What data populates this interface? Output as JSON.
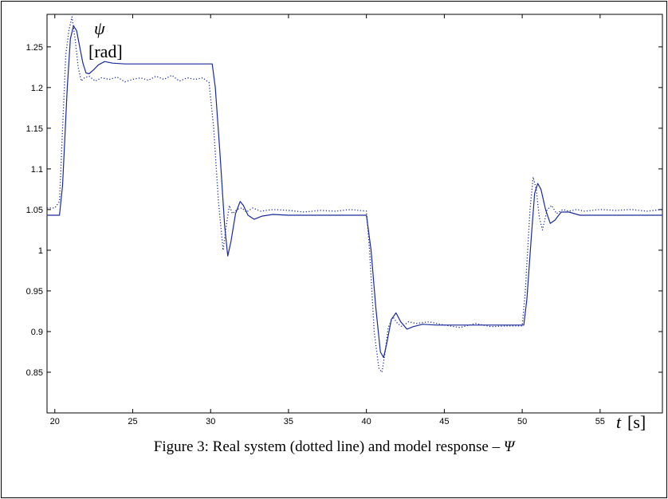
{
  "chart_data": {
    "type": "line",
    "title": "",
    "xlabel": "t [s]",
    "xlabel_var": "t",
    "xlabel_unit": "[s]",
    "ylabel_var": "ψ",
    "ylabel_unit": "[rad]",
    "xlim": [
      19.5,
      59
    ],
    "ylim": [
      0.8,
      1.29
    ],
    "grid": false,
    "legend": "none",
    "x_ticks": [
      20,
      25,
      30,
      35,
      40,
      45,
      50,
      55
    ],
    "x_tick_labels": [
      "20",
      "25",
      "30",
      "35",
      "40",
      "45",
      "50",
      "55"
    ],
    "y_ticks": [
      0.85,
      0.9,
      0.95,
      1.0,
      1.05,
      1.1,
      1.15,
      1.2,
      1.25
    ],
    "y_tick_labels": [
      "0.85",
      "0.9",
      "0.95",
      "1",
      "1.05",
      "1.1",
      "1.15",
      "1.2",
      "1.25"
    ],
    "series": [
      {
        "style": "solid",
        "color": "#1a2a9a",
        "x": [
          19.5,
          20.3,
          20.5,
          20.8,
          21.0,
          21.2,
          21.4,
          21.6,
          21.8,
          22.0,
          22.2,
          22.5,
          22.8,
          23.2,
          23.7,
          24.5,
          26,
          28,
          30.1,
          30.3,
          30.6,
          30.9,
          31.1,
          31.3,
          31.6,
          31.9,
          32.1,
          32.4,
          32.8,
          33.3,
          34.0,
          35,
          37,
          40.0,
          40.3,
          40.6,
          40.9,
          41.1,
          41.3,
          41.6,
          41.9,
          42.2,
          42.6,
          43.0,
          43.6,
          44.5,
          46,
          48,
          50.1,
          50.3,
          50.6,
          50.8,
          51.0,
          51.2,
          51.5,
          51.8,
          52.1,
          52.5,
          53.0,
          53.7,
          55,
          57,
          59
        ],
        "y": [
          1.043,
          1.043,
          1.08,
          1.2,
          1.26,
          1.276,
          1.27,
          1.25,
          1.23,
          1.218,
          1.217,
          1.222,
          1.228,
          1.232,
          1.23,
          1.229,
          1.229,
          1.229,
          1.229,
          1.2,
          1.12,
          1.03,
          0.993,
          1.01,
          1.045,
          1.06,
          1.055,
          1.043,
          1.038,
          1.042,
          1.044,
          1.043,
          1.043,
          1.043,
          1.0,
          0.93,
          0.875,
          0.868,
          0.885,
          0.915,
          0.923,
          0.912,
          0.903,
          0.906,
          0.909,
          0.908,
          0.908,
          0.908,
          0.908,
          0.94,
          1.02,
          1.07,
          1.082,
          1.075,
          1.05,
          1.033,
          1.037,
          1.047,
          1.047,
          1.043,
          1.043,
          1.043,
          1.043
        ]
      },
      {
        "style": "dotted",
        "color": "#1a2a9a",
        "x": [
          19.5,
          20.0,
          20.3,
          20.5,
          20.7,
          20.9,
          21.1,
          21.3,
          21.5,
          21.7,
          21.9,
          22.2,
          22.6,
          23.0,
          23.5,
          24.0,
          24.5,
          25.0,
          25.5,
          26.0,
          26.5,
          27.0,
          27.5,
          28.0,
          28.5,
          29.0,
          29.5,
          29.9,
          30.2,
          30.5,
          30.8,
          31.0,
          31.2,
          31.4,
          31.7,
          32.0,
          32.3,
          32.7,
          33.2,
          34.0,
          35,
          36,
          37,
          38,
          39,
          40.0,
          40.2,
          40.5,
          40.8,
          41.0,
          41.2,
          41.4,
          41.7,
          42.0,
          42.3,
          42.7,
          43.2,
          44.0,
          45,
          46,
          47,
          48,
          49,
          50.0,
          50.2,
          50.5,
          50.7,
          50.9,
          51.1,
          51.3,
          51.6,
          51.9,
          52.2,
          52.6,
          53.0,
          53.5,
          54.0,
          55,
          56,
          57,
          58,
          59
        ],
        "y": [
          1.052,
          1.052,
          1.06,
          1.15,
          1.24,
          1.27,
          1.287,
          1.26,
          1.225,
          1.208,
          1.212,
          1.214,
          1.208,
          1.212,
          1.21,
          1.213,
          1.207,
          1.21,
          1.212,
          1.209,
          1.214,
          1.21,
          1.215,
          1.208,
          1.212,
          1.21,
          1.212,
          1.206,
          1.15,
          1.06,
          1.0,
          1.03,
          1.055,
          1.045,
          1.05,
          1.052,
          1.047,
          1.052,
          1.048,
          1.05,
          1.049,
          1.047,
          1.049,
          1.048,
          1.05,
          1.048,
          1.0,
          0.9,
          0.855,
          0.85,
          0.875,
          0.905,
          0.918,
          0.91,
          0.906,
          0.912,
          0.91,
          0.912,
          0.908,
          0.905,
          0.91,
          0.906,
          0.907,
          0.907,
          0.95,
          1.05,
          1.09,
          1.075,
          1.04,
          1.025,
          1.05,
          1.055,
          1.045,
          1.05,
          1.048,
          1.05,
          1.048,
          1.05,
          1.049,
          1.05,
          1.048,
          1.05
        ]
      }
    ]
  },
  "caption": {
    "prefix": "Figure 3: Real system (dotted line) and model response – ",
    "symbol": "Ψ"
  }
}
